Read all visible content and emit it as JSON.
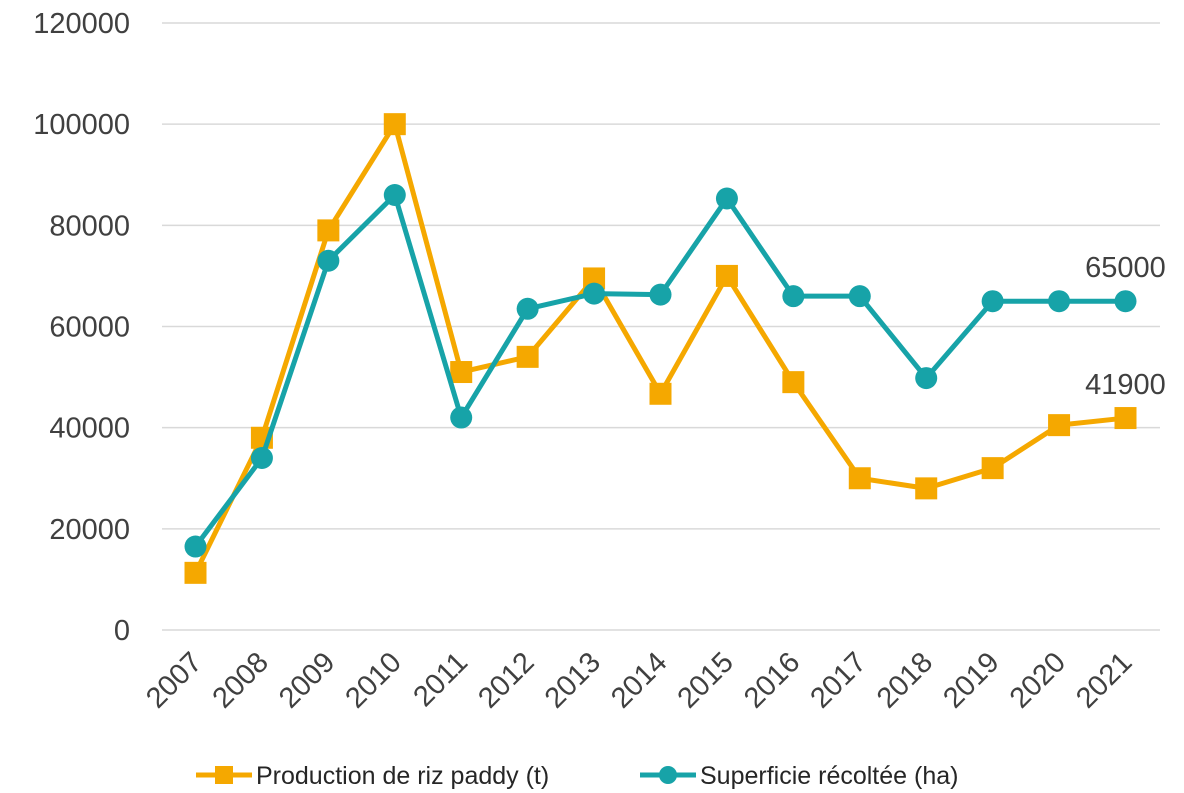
{
  "chart_data": {
    "type": "line",
    "title": "",
    "xlabel": "",
    "ylabel": "",
    "categories": [
      "2007",
      "2008",
      "2009",
      "2010",
      "2011",
      "2012",
      "2013",
      "2014",
      "2015",
      "2016",
      "2017",
      "2018",
      "2019",
      "2020",
      "2021"
    ],
    "ylim": [
      0,
      120000
    ],
    "yticks": [
      "0",
      "20000",
      "40000",
      "60000",
      "80000",
      "100000",
      "120000"
    ],
    "grid": true,
    "legend_position": "bottom",
    "series": [
      {
        "name": "Production de riz paddy (t)",
        "color": "#F5A800",
        "marker": "square",
        "values": [
          11300,
          38000,
          79000,
          100000,
          51000,
          54000,
          69500,
          46700,
          70000,
          49000,
          30000,
          28000,
          32000,
          40500,
          41900
        ],
        "end_label": "41900"
      },
      {
        "name": "Superficie récoltée  (ha)",
        "color": "#17A3A8",
        "marker": "circle",
        "values": [
          16500,
          34000,
          73000,
          86000,
          42000,
          63500,
          66500,
          66300,
          85300,
          66000,
          66000,
          49800,
          65000,
          65000,
          65000
        ],
        "end_label": "65000"
      }
    ]
  }
}
